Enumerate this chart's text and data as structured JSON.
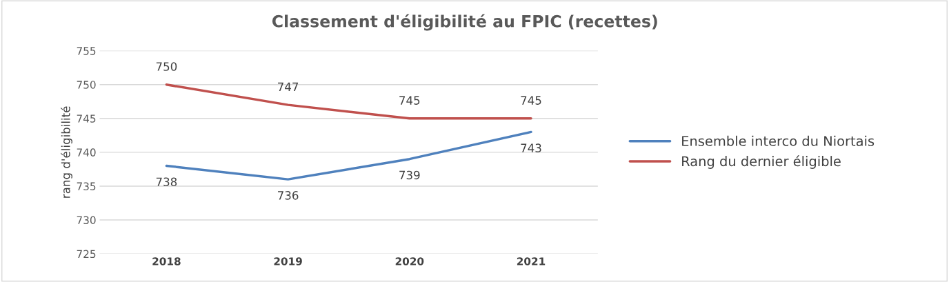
{
  "chart_data": {
    "type": "line",
    "title": "Classement d'éligibilité au FPIC (recettes)",
    "ylabel": "rang d'éligibilité",
    "categories": [
      "2018",
      "2019",
      "2020",
      "2021"
    ],
    "series": [
      {
        "name": "Ensemble interco du Niortais",
        "color": "#4f81bd",
        "values": [
          738,
          736,
          739,
          743
        ]
      },
      {
        "name": "Rang du dernier éligible",
        "color": "#c0504d",
        "values": [
          750,
          747,
          745,
          745
        ]
      }
    ],
    "ylim": [
      725,
      755
    ],
    "yticks": [
      725,
      730,
      735,
      740,
      745,
      750,
      755
    ],
    "grid": "y",
    "legend": "right",
    "data_labels": true,
    "marker": "none",
    "line_style": "solid"
  }
}
